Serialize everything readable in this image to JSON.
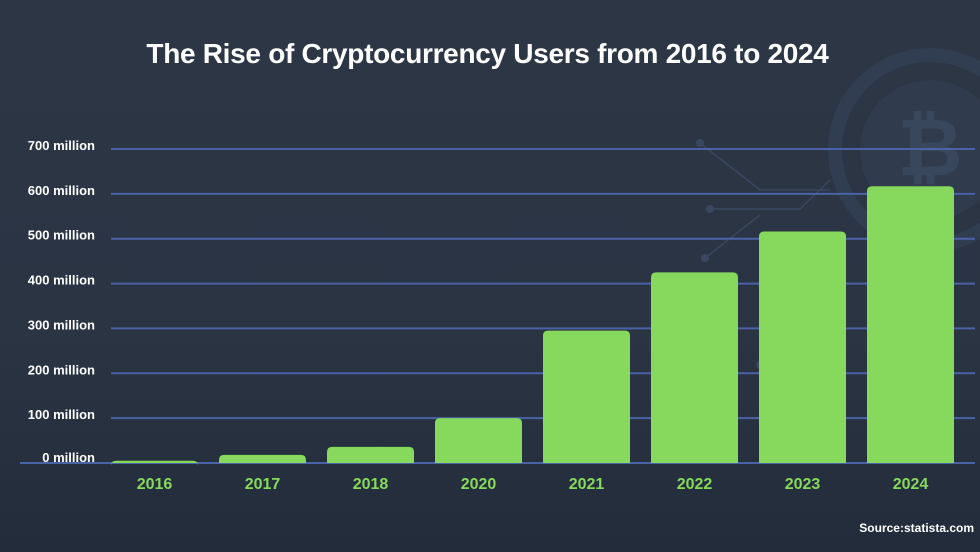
{
  "chart_data": {
    "type": "bar",
    "title": "The Rise of Cryptocurrency Users from 2016 to 2024",
    "categories": [
      "2016",
      "2017",
      "2018",
      "2020",
      "2021",
      "2022",
      "2023",
      "2024"
    ],
    "values": [
      5,
      18,
      36,
      100,
      295,
      425,
      516,
      617
    ],
    "unit": "million",
    "ylim": [
      0,
      700
    ],
    "yticks": [
      0,
      100,
      200,
      300,
      400,
      500,
      600,
      700
    ],
    "ytick_labels": [
      "0 million",
      "100 million",
      "200 million",
      "300 million",
      "400 million",
      "500 million",
      "600 million",
      "700 million"
    ],
    "xlabel": "",
    "ylabel": "",
    "grid": true,
    "source": "Source:statista.com",
    "colors": {
      "bar": "#86d95c",
      "grid": "#4a62a6",
      "tick_x": "#86d95c",
      "tick_y": "#ffffff",
      "background": "#2a3443"
    }
  }
}
